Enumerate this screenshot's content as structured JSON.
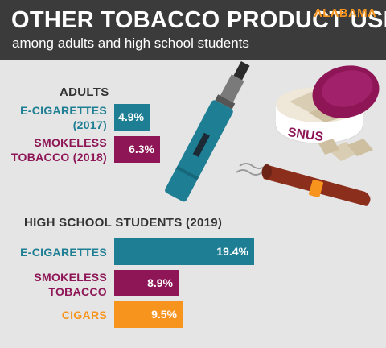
{
  "header": {
    "title": "OTHER TOBACCO PRODUCT USE",
    "subtitle": "among adults and high school students",
    "state": "ALABAMA"
  },
  "colors": {
    "header_bg": "#3b3b3b",
    "background": "#e5e5e5",
    "teal": "#1e7e93",
    "maroon": "#8e1656",
    "orange": "#f7941d"
  },
  "illustration": {
    "tin_label": "SNUS"
  },
  "chart_data": [
    {
      "type": "bar",
      "title": "ADULTS",
      "categories": [
        "E-CIGARETTES (2017)",
        "SMOKELESS TOBACCO (2018)"
      ],
      "label_lines": [
        [
          "E-CIGARETTES",
          "(2017)"
        ],
        [
          "SMOKELESS",
          "TOBACCO (2018)"
        ]
      ],
      "values": [
        4.9,
        6.3
      ],
      "value_labels": [
        "4.9%",
        "6.3%"
      ],
      "colors": [
        "#1e7e93",
        "#8e1656"
      ],
      "unit": "%",
      "orientation": "horizontal"
    },
    {
      "type": "bar",
      "title": "HIGH SCHOOL STUDENTS (2019)",
      "categories": [
        "E-CIGARETTES",
        "SMOKELESS TOBACCO",
        "CIGARS"
      ],
      "label_lines": [
        [
          "E-CIGARETTES"
        ],
        [
          "SMOKELESS",
          "TOBACCO"
        ],
        [
          "CIGARS"
        ]
      ],
      "values": [
        19.4,
        8.9,
        9.5
      ],
      "value_labels": [
        "19.4%",
        "8.9%",
        "9.5%"
      ],
      "colors": [
        "#1e7e93",
        "#8e1656",
        "#f7941d"
      ],
      "unit": "%",
      "orientation": "horizontal"
    }
  ]
}
